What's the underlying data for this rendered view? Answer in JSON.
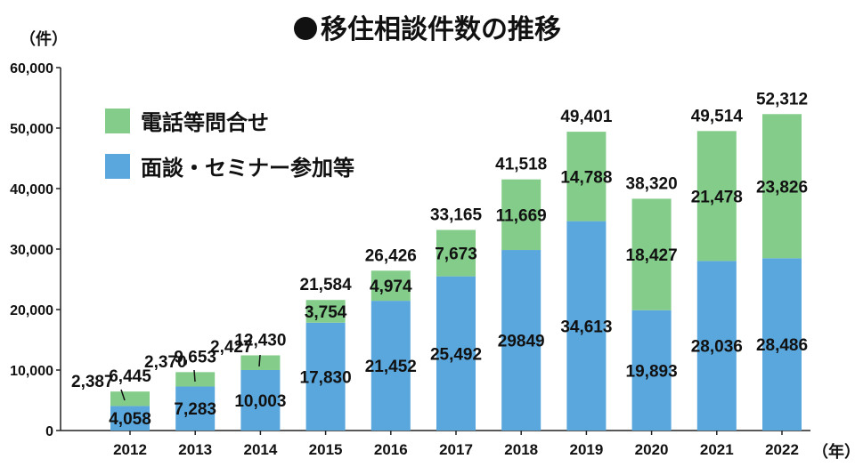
{
  "chart_data": {
    "type": "bar",
    "stacked": true,
    "title": "●移住相談件数の推移",
    "ylabel": "（件）",
    "xlabel": "（年）",
    "ylim": [
      0,
      60000
    ],
    "yticks": [
      "0",
      "10,000",
      "20,000",
      "30,000",
      "40,000",
      "50,000",
      "60,000"
    ],
    "categories": [
      "2012",
      "2013",
      "2014",
      "2015",
      "2016",
      "2017",
      "2018",
      "2019",
      "2020",
      "2021",
      "2022"
    ],
    "series": [
      {
        "name": "面談・セミナー参加等",
        "color": "#5aa7dd",
        "values": [
          4058,
          7283,
          10003,
          17830,
          21452,
          25492,
          29849,
          34613,
          19893,
          28036,
          28486
        ],
        "labels": [
          "4,058",
          "7,283",
          "10,003",
          "17,830",
          "21,452",
          "25,492",
          "29849",
          "34,613",
          "19,893",
          "28,036",
          "28,486"
        ]
      },
      {
        "name": "電話等問合せ",
        "color": "#84cc8a",
        "values": [
          2387,
          2370,
          2427,
          3754,
          4974,
          7673,
          11669,
          14788,
          18427,
          21478,
          23826
        ],
        "labels": [
          "2,387",
          "2,370",
          "2,427",
          "3,754",
          "4,974",
          "7,673",
          "11,669",
          "14,788",
          "18,427",
          "21,478",
          "23,826"
        ]
      }
    ],
    "totals": [
      6445,
      9653,
      12430,
      21584,
      26426,
      33165,
      41518,
      49401,
      38320,
      49514,
      52312
    ],
    "total_labels": [
      "6,445",
      "9,653",
      "12,430",
      "21,584",
      "26,426",
      "33,165",
      "41,518",
      "49,401",
      "38,320",
      "49,514",
      "52,312"
    ],
    "legend": [
      {
        "name": "電話等問合せ",
        "color": "#84cc8a"
      },
      {
        "name": "面談・セミナー参加等",
        "color": "#5aa7dd"
      }
    ],
    "legend_position": "top-left"
  }
}
